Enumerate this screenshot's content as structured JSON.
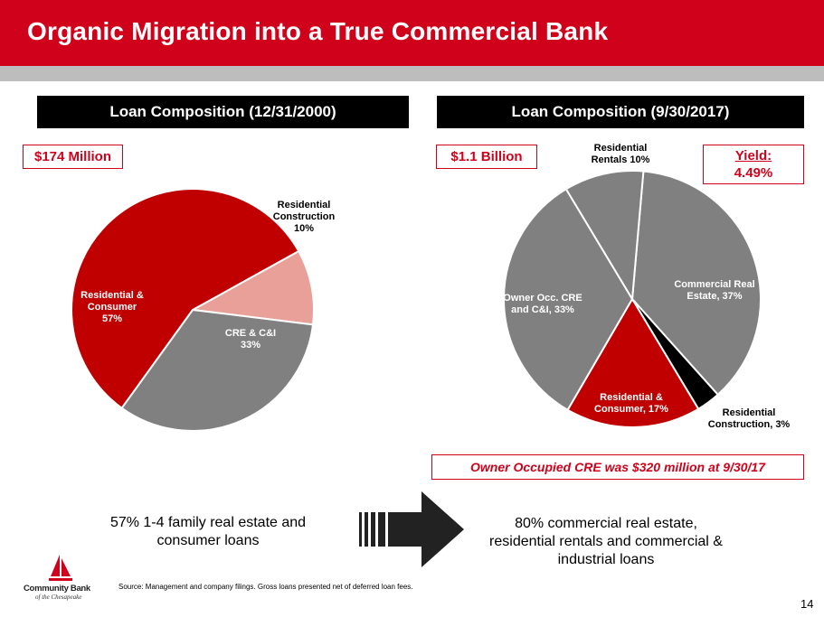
{
  "title": "Organic Migration into a True Commercial Bank",
  "left_panel": {
    "header": "Loan Composition (12/31/2000)",
    "total_label": "$174 Million"
  },
  "right_panel": {
    "header": "Loan Composition (9/30/2017)",
    "total_label": "$1.1 Billion",
    "yield_label": "Yield:",
    "yield_value": "4.49%",
    "owner_note": "Owner Occupied CRE was $320 million at 9/30/17"
  },
  "summary_left": [
    "57% 1-4 family real estate and",
    "consumer loans"
  ],
  "summary_right": [
    "80% commercial real estate,",
    "residential rentals and commercial &",
    "industrial loans"
  ],
  "source": "Source: Management and company filings. Gross loans presented net of deferred loan fees.",
  "page_number": "14",
  "logo": {
    "name": "Community Bank",
    "sub": "of the Chesapeake"
  },
  "colors": {
    "brand_red": "#d0021b",
    "grey": "#808080",
    "pink": "#e8a099",
    "black": "#000000"
  },
  "chart_data": [
    {
      "type": "pie",
      "title": "Loan Composition (12/31/2000)",
      "slices": [
        {
          "label": [
            "Residential",
            "Construction",
            "10%"
          ],
          "value": 10,
          "color": "#e8a099"
        },
        {
          "label": [
            "CRE & C&I",
            "33%"
          ],
          "value": 33,
          "color": "#808080"
        },
        {
          "label": [
            "Residential &",
            "Consumer",
            "57%"
          ],
          "value": 57,
          "color": "#c00000"
        }
      ]
    },
    {
      "type": "pie",
      "title": "Loan Composition (9/30/2017)",
      "slices": [
        {
          "label": [
            "Commercial Real",
            "Estate, 37%"
          ],
          "value": 37,
          "color": "#808080"
        },
        {
          "label": [
            "Residential",
            "Construction, 3%"
          ],
          "value": 3,
          "color": "#000000"
        },
        {
          "label": [
            "Residential &",
            "Consumer, 17%"
          ],
          "value": 17,
          "color": "#c00000"
        },
        {
          "label": [
            "Owner Occ. CRE",
            "and C&I, 33%"
          ],
          "value": 33,
          "color": "#808080"
        },
        {
          "label": [
            "Residential",
            "Rentals  10%"
          ],
          "value": 10,
          "color": "#808080"
        }
      ]
    }
  ]
}
